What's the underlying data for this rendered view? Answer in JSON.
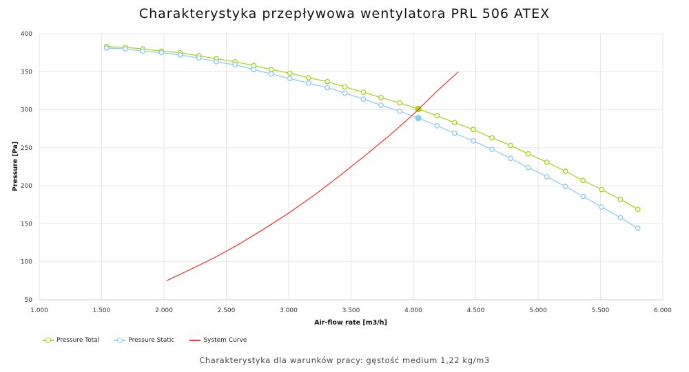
{
  "title": "Charakterystyka przepływowa wentylatora PRL 506 ATEX",
  "caption": "Charakterystyka dla warunków pracy: gęstość medium 1,22 kg/m3",
  "chart_data": {
    "type": "line",
    "title": "Charakterystyka przepływowa wentylatora PRL 506 ATEX",
    "xlabel": "Air-flow rate [m3/h]",
    "ylabel": "Pressure [Pa]",
    "xlim": [
      1000,
      6000
    ],
    "ylim": [
      50,
      400
    ],
    "x_ticks": [
      1000,
      1500,
      2000,
      2500,
      3000,
      3500,
      4000,
      4500,
      5000,
      5500,
      6000
    ],
    "x_tick_labels": [
      "1.000",
      "1.500",
      "2.000",
      "2.500",
      "3.000",
      "3.500",
      "4.000",
      "4.500",
      "5.000",
      "5.500",
      "6.000"
    ],
    "y_ticks": [
      50,
      100,
      150,
      200,
      250,
      300,
      350,
      400
    ],
    "y_tick_labels": [
      "50",
      "100",
      "150",
      "200",
      "250",
      "300",
      "350",
      "400"
    ],
    "grid": true,
    "legend_position": "bottom-left",
    "series": [
      {
        "name": "Pressure Total",
        "color": "#a6d61e",
        "marker": "circle-open",
        "x": [
          1540,
          1690,
          1830,
          1980,
          2130,
          2280,
          2420,
          2570,
          2720,
          2860,
          3010,
          3160,
          3310,
          3450,
          3600,
          3740,
          3890,
          4040,
          4190,
          4330,
          4480,
          4630,
          4780,
          4920,
          5070,
          5220,
          5360,
          5510,
          5660,
          5800
        ],
        "y": [
          383,
          382,
          380,
          377,
          375,
          371,
          367,
          363,
          358,
          353,
          348,
          342,
          337,
          330,
          323,
          316,
          309,
          301,
          292,
          283,
          274,
          263,
          253,
          242,
          231,
          219,
          207,
          195,
          182,
          169
        ],
        "highlight": {
          "x": 4040,
          "y": 301
        }
      },
      {
        "name": "Pressure Static",
        "color": "#8ecdf2",
        "marker": "circle-open",
        "x": [
          1540,
          1690,
          1830,
          1980,
          2130,
          2280,
          2420,
          2570,
          2720,
          2860,
          3010,
          3160,
          3310,
          3450,
          3600,
          3740,
          3890,
          4040,
          4190,
          4330,
          4480,
          4630,
          4780,
          4920,
          5070,
          5220,
          5360,
          5510,
          5660,
          5800
        ],
        "y": [
          381,
          380,
          377,
          375,
          372,
          368,
          363,
          359,
          353,
          347,
          341,
          335,
          329,
          322,
          314,
          306,
          298,
          289,
          279,
          269,
          259,
          248,
          236,
          224,
          212,
          199,
          186,
          172,
          158,
          144
        ],
        "highlight": {
          "x": 4040,
          "y": 289
        }
      },
      {
        "name": "System Curve",
        "color": "#ef3b36",
        "marker": "none",
        "x": [
          2020,
          2200,
          2400,
          2600,
          2800,
          3000,
          3200,
          3400,
          3600,
          3800,
          4000,
          4200,
          4360
        ],
        "y": [
          75,
          89,
          105,
          123,
          143,
          164,
          187,
          212,
          238,
          265,
          294,
          326,
          350
        ]
      }
    ]
  }
}
